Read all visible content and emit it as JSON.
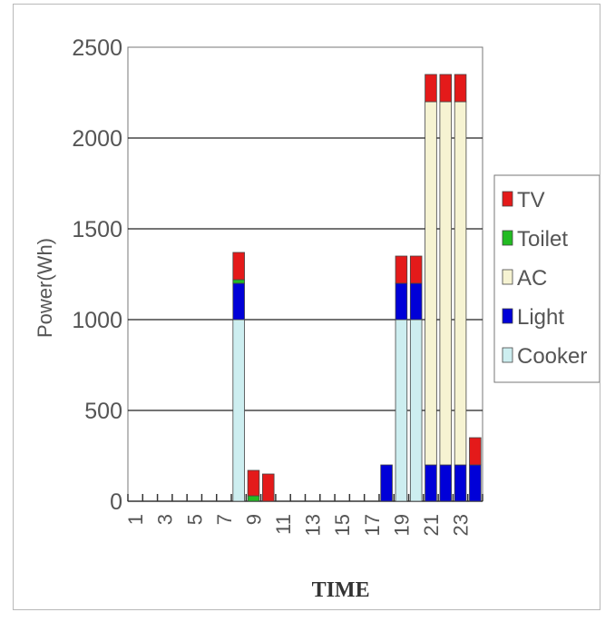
{
  "chart_data": {
    "type": "bar",
    "stacked": true,
    "title": "",
    "xlabel": "TIME",
    "ylabel": "Power(Wh)",
    "ylim": [
      0,
      2500
    ],
    "yticks": [
      0,
      500,
      1000,
      1500,
      2000,
      2500
    ],
    "grid": true,
    "legend_position": "right",
    "categories": [
      1,
      2,
      3,
      4,
      5,
      6,
      7,
      8,
      9,
      10,
      11,
      12,
      13,
      14,
      15,
      16,
      17,
      18,
      19,
      20,
      21,
      22,
      23,
      24
    ],
    "xtick_labels": [
      "1",
      "3",
      "5",
      "7",
      "9",
      "11",
      "13",
      "15",
      "17",
      "19",
      "21",
      "23"
    ],
    "series": [
      {
        "name": "Cooker",
        "color": "#cdeef0",
        "values": [
          0,
          0,
          0,
          0,
          0,
          0,
          0,
          1000,
          0,
          0,
          0,
          0,
          0,
          0,
          0,
          0,
          0,
          0,
          1000,
          1000,
          0,
          0,
          0,
          0
        ]
      },
      {
        "name": "Light",
        "color": "#0000d8",
        "values": [
          0,
          0,
          0,
          0,
          0,
          0,
          0,
          200,
          0,
          0,
          0,
          0,
          0,
          0,
          0,
          0,
          0,
          200,
          200,
          200,
          200,
          200,
          200,
          200
        ]
      },
      {
        "name": "AC",
        "color": "#f6f3d2",
        "values": [
          0,
          0,
          0,
          0,
          0,
          0,
          0,
          0,
          0,
          0,
          0,
          0,
          0,
          0,
          0,
          0,
          0,
          0,
          0,
          0,
          2000,
          2000,
          2000,
          0
        ]
      },
      {
        "name": "Toilet",
        "color": "#22bb22",
        "values": [
          0,
          0,
          0,
          0,
          0,
          0,
          0,
          20,
          30,
          0,
          0,
          0,
          0,
          0,
          0,
          0,
          0,
          0,
          0,
          0,
          0,
          0,
          0,
          0
        ]
      },
      {
        "name": "TV",
        "color": "#e41a1a",
        "values": [
          0,
          0,
          0,
          0,
          0,
          0,
          0,
          150,
          140,
          150,
          0,
          0,
          0,
          0,
          0,
          0,
          0,
          0,
          150,
          150,
          150,
          150,
          150,
          150
        ]
      }
    ]
  }
}
